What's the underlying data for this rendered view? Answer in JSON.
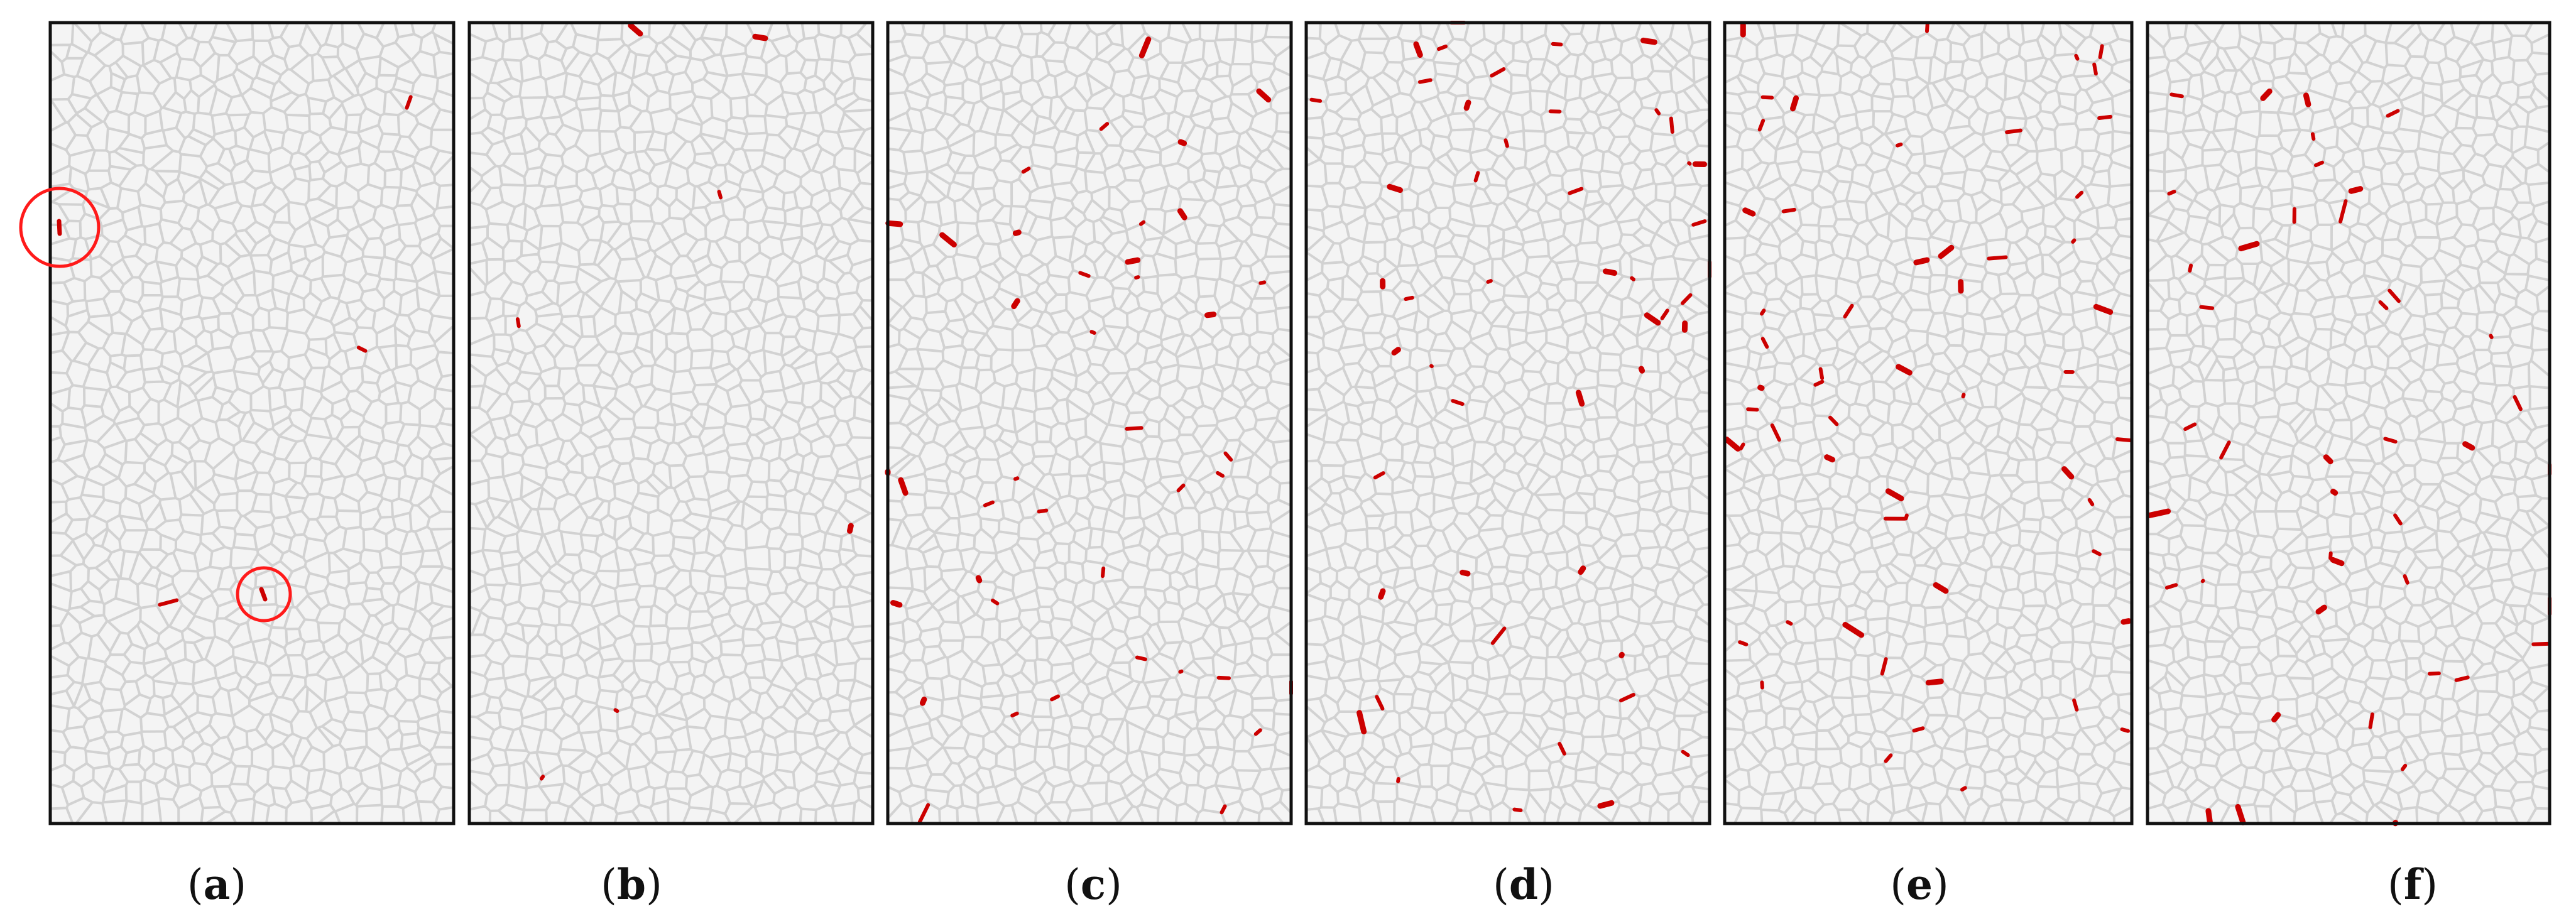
{
  "figure": {
    "panels": [
      {
        "id": "a",
        "label": "a"
      },
      {
        "id": "b",
        "label": "b"
      },
      {
        "id": "c",
        "label": "c"
      },
      {
        "id": "d",
        "label": "d"
      },
      {
        "id": "e",
        "label": "e"
      },
      {
        "id": "f",
        "label": "f"
      }
    ],
    "colors": {
      "background": "#ffffff",
      "panel_border": "#111111",
      "grain_edges": "#d2d2d2",
      "grain_fill": "#f4f4f4",
      "cracks": "#cc0000",
      "highlight_circles": "#ff1a1a"
    }
  }
}
